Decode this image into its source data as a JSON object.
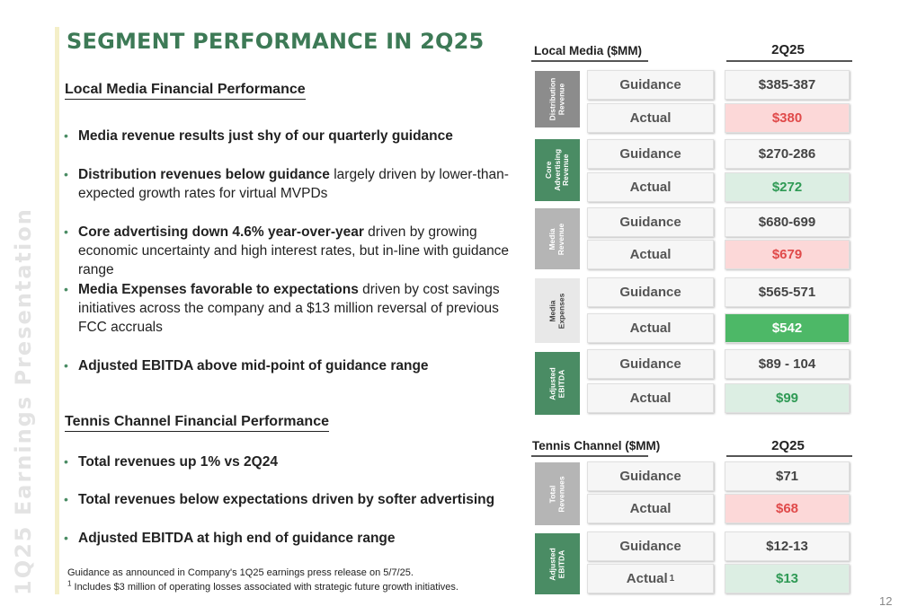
{
  "side_label": "1Q25 Earnings Presentation",
  "title": "SEGMENT PERFORMANCE IN 2Q25",
  "local_media": {
    "heading": "Local Media Financial Performance",
    "bullets": [
      {
        "bold": "Media revenue results just shy of our quarterly guidance",
        "text": ""
      },
      {
        "bold": "Distribution revenues below guidance",
        "text": " largely driven by lower-than-expected growth rates for virtual MVPDs"
      },
      {
        "bold": "Core advertising down 4.6% year-over-year",
        "text": " driven by growing economic uncertainty and high interest rates, but in-line with guidance range"
      },
      {
        "bold": "Media Expenses favorable to expectations",
        "text": " driven by cost savings initiatives across the company and a $13 million reversal of previous FCC accruals"
      },
      {
        "bold": "Adjusted EBITDA above mid-point of guidance range",
        "text": ""
      }
    ]
  },
  "tennis": {
    "heading": "Tennis Channel Financial Performance",
    "bullets": [
      {
        "bold": "Total revenues up 1% vs 2Q24",
        "text": ""
      },
      {
        "bold": "Total revenues below expectations driven by softer advertising",
        "text": ""
      },
      {
        "bold": "Adjusted EBITDA at high end of guidance range",
        "text": ""
      }
    ]
  },
  "footnotes": {
    "line1": "Guidance as announced in Company's 1Q25 earnings press release on 5/7/25.",
    "marker": "1",
    "line2": " Includes $3 million of operating losses associated with strategic future growth initiatives."
  },
  "page_number": "12",
  "local_table": {
    "header": "Local Media ($MM)",
    "period": "2Q25",
    "rows": [
      {
        "tab": "Distribution\nRevenue",
        "guidance_label": "Guidance",
        "guidance": "$385-387",
        "actual_label": "Actual",
        "actual": "$380",
        "status": "miss"
      },
      {
        "tab": "Core\nAdvertising\nRevenue",
        "guidance_label": "Guidance",
        "guidance": "$270-286",
        "actual_label": "Actual",
        "actual": "$272",
        "status": "beat"
      },
      {
        "tab": "Media\nRevenue",
        "guidance_label": "Guidance",
        "guidance": "$680-699",
        "actual_label": "Actual",
        "actual": "$679",
        "status": "miss"
      },
      {
        "tab": "Media\nExpenses",
        "guidance_label": "Guidance",
        "guidance": "$565-571",
        "actual_label": "Actual",
        "actual": "$542",
        "status": "strong"
      },
      {
        "tab": "Adjusted\nEBITDA",
        "guidance_label": "Guidance",
        "guidance": "$89 - 104",
        "actual_label": "Actual",
        "actual": "$99",
        "status": "beat"
      }
    ]
  },
  "tennis_table": {
    "header": "Tennis Channel ($MM)",
    "period": "2Q25",
    "rows": [
      {
        "tab": "Total\nRevenues",
        "guidance_label": "Guidance",
        "guidance": "$71",
        "actual_label": "Actual",
        "actual_mark": "",
        "actual": "$68",
        "status": "miss"
      },
      {
        "tab": "Adjusted\nEBITDA",
        "guidance_label": "Guidance",
        "guidance": "$12-13",
        "actual_label": "Actual",
        "actual_mark": "1",
        "actual": "$13",
        "status": "beat"
      }
    ]
  }
}
